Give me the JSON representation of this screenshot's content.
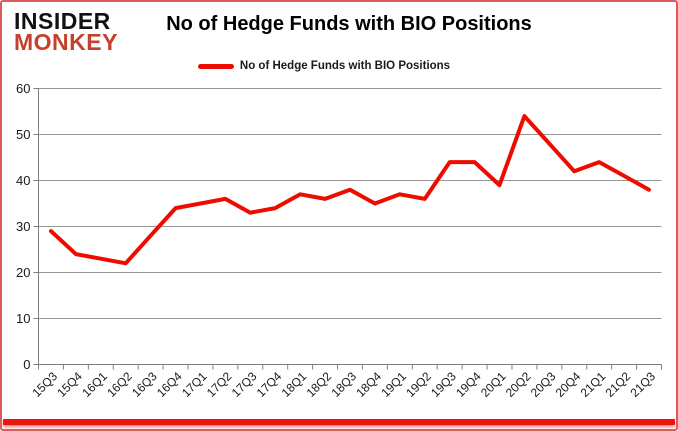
{
  "logo": {
    "line1": "INSIDER",
    "line2": "MONKEY",
    "line1_color": "#111111",
    "line2_color": "#c7402d"
  },
  "title": "No of Hedge Funds with BIO Positions",
  "legend": {
    "label": "No of Hedge Funds with BIO Positions",
    "swatch_color": "#ee0b00"
  },
  "chart_data": {
    "type": "line",
    "title": "No of Hedge Funds with BIO Positions",
    "categories": [
      "15Q3",
      "15Q4",
      "16Q1",
      "16Q2",
      "16Q3",
      "16Q4",
      "17Q1",
      "17Q2",
      "17Q3",
      "17Q4",
      "18Q1",
      "18Q2",
      "18Q3",
      "18Q4",
      "19Q1",
      "19Q2",
      "19Q3",
      "19Q4",
      "20Q1",
      "20Q2",
      "20Q3",
      "20Q4",
      "21Q1",
      "21Q2",
      "21Q3"
    ],
    "series": [
      {
        "name": "No of Hedge Funds with BIO Positions",
        "color": "#ee0b00",
        "values": [
          29,
          24,
          23,
          22,
          28,
          34,
          35,
          36,
          33,
          34,
          37,
          36,
          38,
          35,
          37,
          36,
          44,
          44,
          39,
          54,
          48,
          42,
          44,
          41,
          38
        ]
      }
    ],
    "ylim": [
      0,
      60
    ],
    "yticks": [
      0,
      10,
      20,
      30,
      40,
      50,
      60
    ],
    "grid": true,
    "legend_position": "top",
    "line_width": 4
  },
  "colors": {
    "grid": "#969696",
    "axis": "#7f7f7f",
    "tick_label": "#1a1a1a",
    "frame_border": "#e05a5a",
    "bottom_bar": "#ec1509",
    "background": "#ffffff"
  }
}
